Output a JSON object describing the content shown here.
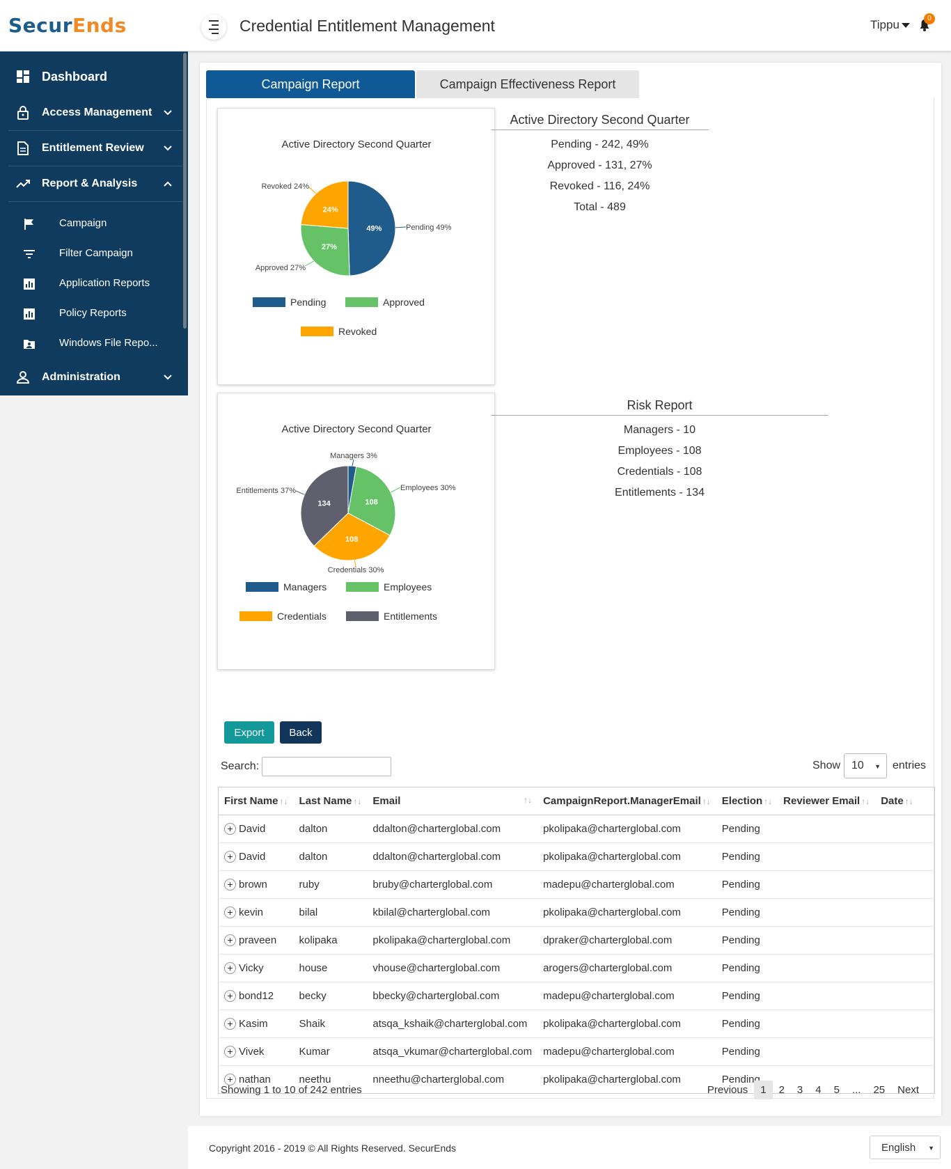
{
  "app": {
    "logo_part1": "Secur",
    "logo_part2": "Ends",
    "title": "Credential Entitlement Management",
    "user": "Tippu",
    "notification_count": "0"
  },
  "sidebar": {
    "dashboard": "Dashboard",
    "access_management": "Access Management",
    "entitlement_review": "Entitlement Review",
    "report_analysis": "Report & Analysis",
    "sub_items": [
      "Campaign",
      "Filter Campaign",
      "Application Reports",
      "Policy Reports",
      "Windows File Repo..."
    ],
    "administration": "Administration"
  },
  "tabs": {
    "active": "Campaign Report",
    "inactive": "Campaign Effectiveness Report"
  },
  "colors": {
    "pending": "#1f5c8b",
    "approved": "#66c266",
    "revoked": "#ffa500",
    "managers": "#1f5c8b",
    "employees": "#66c266",
    "credentials": "#ffa500",
    "entitlements": "#5f5f6e"
  },
  "chart_data": [
    {
      "type": "pie",
      "title": "Active Directory Second Quarter",
      "categories": [
        "Pending",
        "Approved",
        "Revoked"
      ],
      "values": [
        242,
        131,
        116
      ],
      "slice_labels": [
        "49%",
        "27%",
        "24%"
      ],
      "callouts": [
        "Pending 49%",
        "Approved 27%",
        "Revoked 24%"
      ],
      "legend": [
        "Pending",
        "Approved",
        "Revoked"
      ]
    },
    {
      "type": "pie",
      "title": "Active Directory Second Quarter",
      "categories": [
        "Managers",
        "Employees",
        "Credentials",
        "Entitlements"
      ],
      "values": [
        10,
        108,
        108,
        134
      ],
      "slice_labels": [
        "",
        "108",
        "108",
        "134"
      ],
      "callouts": [
        "Managers 3%",
        "Employees 30%",
        "Credentials 30%",
        "Entitlements 37%"
      ],
      "legend": [
        "Managers",
        "Employees",
        "Credentials",
        "Entitlements"
      ]
    }
  ],
  "summary1": {
    "title": "Active Directory Second Quarter",
    "rows": [
      "Pending - 242, 49%",
      "Approved - 131, 27%",
      "Revoked - 116, 24%",
      "Total - 489"
    ]
  },
  "summary2": {
    "title": "Risk Report",
    "rows": [
      "Managers - 10",
      "Employees - 108",
      "Credentials - 108",
      "Entitlements - 134"
    ]
  },
  "actions": {
    "export": "Export",
    "back": "Back"
  },
  "table_controls": {
    "search_label": "Search:",
    "show_label": "Show",
    "page_size": "10",
    "entries_label": "entries"
  },
  "table": {
    "headers": [
      "First Name",
      "Last Name",
      "Email",
      "CampaignReport.ManagerEmail",
      "Election",
      "Reviewer Email",
      "Date"
    ],
    "rows": [
      [
        "David",
        "dalton",
        "ddalton@charterglobal.com",
        "pkolipaka@charterglobal.com",
        "Pending",
        "",
        ""
      ],
      [
        "David",
        "dalton",
        "ddalton@charterglobal.com",
        "pkolipaka@charterglobal.com",
        "Pending",
        "",
        ""
      ],
      [
        "brown",
        "ruby",
        "bruby@charterglobal.com",
        "madepu@charterglobal.com",
        "Pending",
        "",
        ""
      ],
      [
        "kevin",
        "bilal",
        "kbilal@charterglobal.com",
        "pkolipaka@charterglobal.com",
        "Pending",
        "",
        ""
      ],
      [
        "praveen",
        "kolipaka",
        "pkolipaka@charterglobal.com",
        "dpraker@charterglobal.com",
        "Pending",
        "",
        ""
      ],
      [
        "Vicky",
        "house",
        "vhouse@charterglobal.com",
        "arogers@charterglobal.com",
        "Pending",
        "",
        ""
      ],
      [
        "bond12",
        "becky",
        "bbecky@charterglobal.com",
        "madepu@charterglobal.com",
        "Pending",
        "",
        ""
      ],
      [
        "Kasim",
        "Shaik",
        "atsqa_kshaik@charterglobal.com",
        "pkolipaka@charterglobal.com",
        "Pending",
        "",
        ""
      ],
      [
        "Vivek",
        "Kumar",
        "atsqa_vkumar@charterglobal.com",
        "madepu@charterglobal.com",
        "Pending",
        "",
        ""
      ],
      [
        "nathan",
        "neethu",
        "nneethu@charterglobal.com",
        "pkolipaka@charterglobal.com",
        "Pending",
        "",
        ""
      ]
    ]
  },
  "pagination": {
    "info": "Showing 1 to 10 of 242 entries",
    "previous": "Previous",
    "pages": [
      "1",
      "2",
      "3",
      "4",
      "5",
      "...",
      "25"
    ],
    "next": "Next"
  },
  "footer": {
    "copyright": "Copyright 2016 - 2019 © All Rights Reserved. SecurEnds",
    "language": "English"
  }
}
